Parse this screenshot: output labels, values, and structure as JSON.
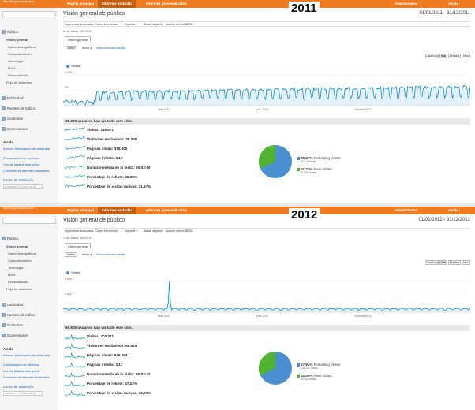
{
  "shared": {
    "nav": [
      "Página principal",
      "Informes estándar",
      "Informes personalizados"
    ],
    "admin": "Administrador",
    "help": "Ayuda",
    "title": "Visión general de público",
    "toolbar": [
      "Segmentos avanzados",
      "Correo electrónico",
      "Exportar ▾",
      "Añadir al panel",
      "Acceso directo BETA"
    ],
    "segment": "% de visitas: 100,00%",
    "tab": "Visión general",
    "metric_select": "Visitas",
    "versus": "frente a",
    "select_metric": "Seleccione una métrica",
    "periods": [
      "Cada hora",
      "Día",
      "Semana",
      "Mes"
    ],
    "legend": "Visitas",
    "sidebar": {
      "section_public": "Público",
      "items": [
        "Visión general",
        "Datos demográficos",
        "Comportamiento",
        "Tecnología",
        "Móvil",
        "Personalizado",
        "Flujo de visitantes"
      ],
      "section_ads": "Publicidad",
      "section_traffic": "Fuentes de tráfico",
      "section_content": "Contenido",
      "section_conv": "Conversiones",
      "help_title": "Ayuda",
      "help_links": [
        "Informe Información de visitantes",
        "Comparación de métricas",
        "Uso de la tabla interactiva",
        "Controles de informes habituales"
      ],
      "assist": "Centro de asistencia",
      "assist_placeholder": "Buscar en el Centro de as"
    },
    "metrics": [
      "Visitas:",
      "Visitantes exclusivos:",
      "Páginas vistas:",
      "Páginas / Visita:",
      "Duración media de la visita:",
      "Porcentaje de rebote:",
      "Porcentaje de visitas nuevas:"
    ],
    "returning_label": "Returning Visitor",
    "new_label": "New Visitor",
    "colors": {
      "orange": "#f07b21",
      "blue": "#4a8fd0",
      "green": "#50b432",
      "line": "#058dc7"
    }
  },
  "panels": [
    {
      "year": "2011",
      "account": "http://blog.example.com/",
      "date_range": "01/01/2011 - 31/12/2011",
      "users_text": "38.000 usuarios han visitado este sitio.",
      "metric_values": [
        "118.671",
        "38.000",
        "375.805",
        "3,17",
        "00:03:50",
        "48,08%",
        "31,67%"
      ],
      "returning_pct": "68,27%",
      "returning_sub": "81.019 Visitas",
      "new_pct": "31,73%",
      "new_sub": "37.652 Visitas",
      "y_max": "1.000",
      "y_mid": "500",
      "x_labels": [
        "abril 2011",
        "julio 2011",
        "octubre 2011"
      ],
      "returning_fraction": 0.6827
    },
    {
      "year": "2012",
      "account": "http://blog.example.com/",
      "date_range": "01/01/2012 - 31/12/2012",
      "users_text": "66.625 usuarios han visitado este sitio.",
      "metric_values": [
        "203.321",
        "66.625",
        "636.393",
        "3,13",
        "00:03:47",
        "47,22%",
        "32,00%"
      ],
      "returning_pct": "67,94%",
      "returning_sub": "138.141 Visitas",
      "new_pct": "32,06%",
      "new_sub": "65.180 Visitas",
      "y_max": "5.000",
      "y_mid": "2.500",
      "x_labels": [
        "abril 2012",
        "julio 2012",
        "octubre 2012"
      ],
      "returning_fraction": 0.6794
    }
  ]
}
